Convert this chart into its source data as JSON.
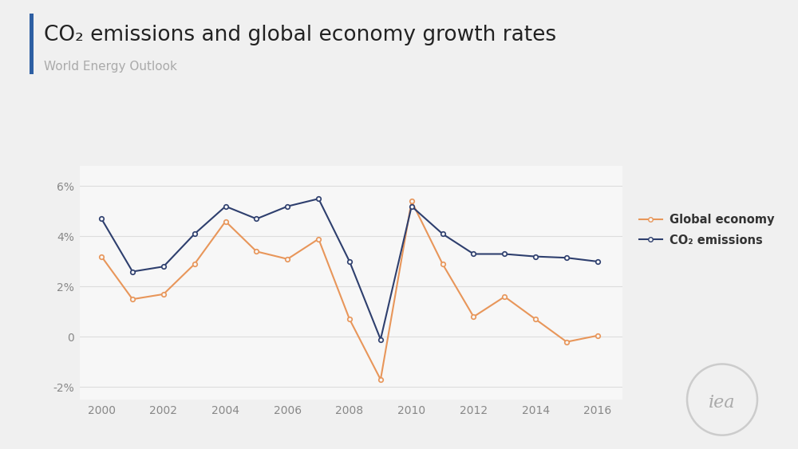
{
  "title": "CO₂ emissions and global economy growth rates",
  "subtitle": "World Energy Outlook",
  "background_color": "#f0f0f0",
  "plot_bg_color": "#f7f7f7",
  "title_color": "#222222",
  "subtitle_color": "#aaaaaa",
  "accent_bar_color": "#2e5fa3",
  "years": [
    2000,
    2001,
    2002,
    2003,
    2004,
    2005,
    2006,
    2007,
    2008,
    2009,
    2010,
    2011,
    2012,
    2013,
    2014,
    2015,
    2016
  ],
  "global_economy": [
    3.2,
    1.5,
    1.7,
    2.9,
    4.6,
    3.4,
    3.1,
    3.9,
    0.7,
    -1.7,
    5.4,
    2.9,
    0.8,
    1.6,
    0.7,
    -0.2,
    0.05
  ],
  "co2_emissions": [
    4.7,
    2.6,
    2.8,
    4.1,
    5.2,
    4.7,
    5.2,
    5.5,
    3.0,
    -0.1,
    5.2,
    4.1,
    3.3,
    3.3,
    3.2,
    3.15,
    3.0
  ],
  "global_economy_color": "#e8965a",
  "co2_emissions_color": "#2e3f6e",
  "ylim": [
    -2.5,
    6.8
  ],
  "yticks": [
    -2,
    0,
    2,
    4,
    6
  ],
  "ytick_labels": [
    "-2%",
    "0",
    "2%",
    "4%",
    "6%"
  ],
  "xticks": [
    2000,
    2002,
    2004,
    2006,
    2008,
    2010,
    2012,
    2014,
    2016
  ],
  "grid_color": "#dddddd",
  "legend_labels": [
    "Global economy",
    "CO₂ emissions"
  ],
  "iea_circle_color": "#cccccc",
  "iea_text_color": "#aaaaaa"
}
